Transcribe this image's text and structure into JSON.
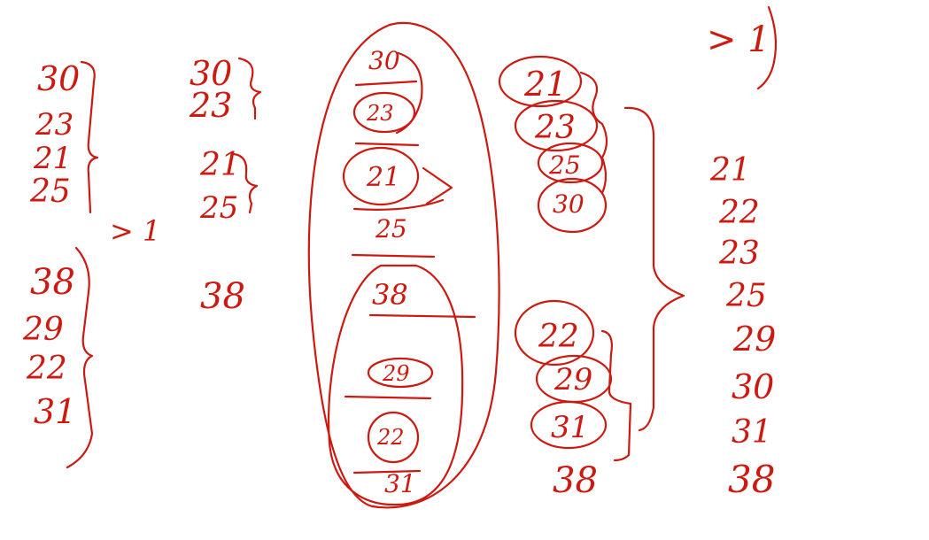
{
  "ink_color": "#cc1a10",
  "background_color": "#ffffff",
  "column_1": {
    "group_a": [
      "30",
      "23",
      "21",
      "25"
    ],
    "group_b": [
      "38",
      "29",
      "22",
      "31"
    ],
    "arrow_note": "> 1"
  },
  "column_2": {
    "pair_a": [
      "30",
      "23"
    ],
    "pair_b": [
      "21",
      "25"
    ],
    "single": "38"
  },
  "column_3": {
    "items": [
      "30",
      "23",
      "21",
      "25",
      "38",
      "29",
      "22",
      "31"
    ]
  },
  "column_4": {
    "merged_a": [
      "21",
      "23",
      "25",
      "30"
    ],
    "merged_b": [
      "22",
      "29",
      "31",
      "38"
    ]
  },
  "corner_note": "> 1",
  "result_column": [
    "21",
    "22",
    "23",
    "25",
    "29",
    "30",
    "31",
    "38"
  ]
}
